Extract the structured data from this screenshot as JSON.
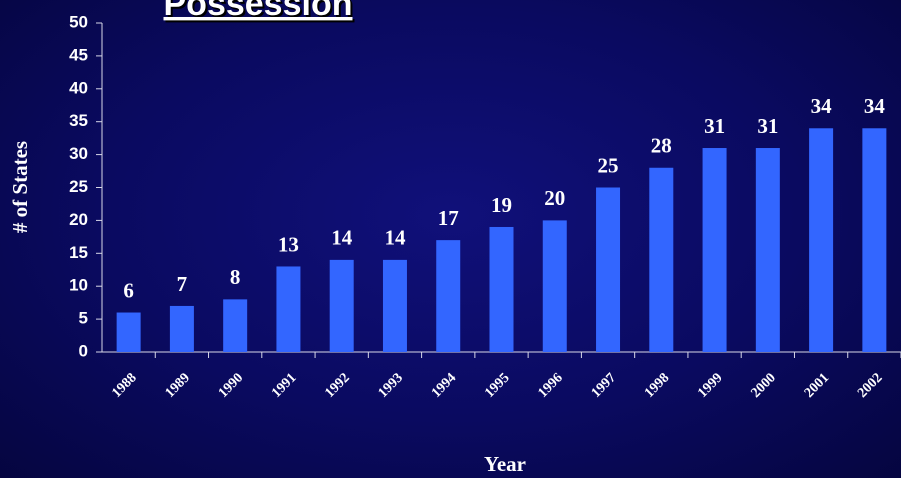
{
  "chart_data": {
    "type": "bar",
    "title": "Possession",
    "x_label": "Year",
    "y_label": "# of States",
    "categories": [
      "1988",
      "1989",
      "1990",
      "1991",
      "1992",
      "1993",
      "1994",
      "1995",
      "1996",
      "1997",
      "1998",
      "1999",
      "2000",
      "2001",
      "2002"
    ],
    "values": [
      6,
      7,
      8,
      13,
      14,
      14,
      17,
      19,
      20,
      25,
      28,
      31,
      31,
      34,
      34
    ],
    "color": "#3366ff",
    "ylim": [
      0,
      50
    ],
    "yticks": [
      0,
      5,
      10,
      15,
      20,
      25,
      30,
      35,
      40,
      45,
      50
    ],
    "grid": false
  }
}
